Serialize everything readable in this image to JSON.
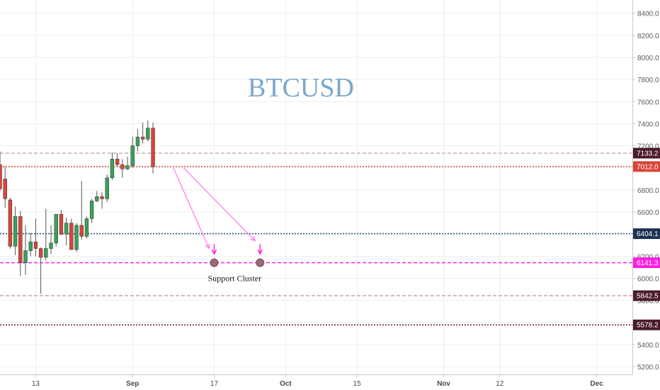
{
  "chart_data": {
    "type": "candlestick",
    "title": "BTCUSD",
    "y_axis": {
      "range": [
        5130,
        8520
      ],
      "ticks": [
        5200,
        5400,
        5600,
        5800,
        6000,
        6200,
        6400,
        6600,
        6800,
        7000,
        7200,
        7400,
        7600,
        7800,
        8000,
        8200,
        8400
      ],
      "tick_labels": [
        "5200.0",
        "5400.0",
        "5600.0",
        "5800.0",
        "6000.0",
        "6200.0",
        "6400.0",
        "6600.0",
        "6800.0",
        "7000.0",
        "7200.0",
        "7400.0",
        "7600.0",
        "7800.0",
        "8000.0",
        "8200.0",
        "8400.0"
      ],
      "position": "right"
    },
    "x_axis": {
      "range": [
        "2018-08-06",
        "2018-12-08"
      ],
      "ticks": [
        {
          "date": "2018-08-13",
          "label": "13",
          "bold": false
        },
        {
          "date": "2018-09-01",
          "label": "Sep",
          "bold": true
        },
        {
          "date": "2018-09-17",
          "label": "17",
          "bold": false
        },
        {
          "date": "2018-10-01",
          "label": "Oct",
          "bold": true
        },
        {
          "date": "2018-10-15",
          "label": "15",
          "bold": false
        },
        {
          "date": "2018-11-01",
          "label": "Nov",
          "bold": true
        },
        {
          "date": "2018-11-12",
          "label": "12",
          "bold": false
        },
        {
          "date": "2018-12-01",
          "label": "Dec",
          "bold": true
        }
      ]
    },
    "grid": true,
    "candle_colors": {
      "up": "#3aa05a",
      "down": "#d9443a",
      "wick": "#555555"
    },
    "candles": [
      {
        "date": "2018-08-06",
        "open": 7030,
        "high": 7150,
        "low": 6790,
        "close": 6810
      },
      {
        "date": "2018-08-07",
        "open": 6900,
        "high": 7010,
        "low": 6640,
        "close": 6720
      },
      {
        "date": "2018-08-08",
        "open": 6710,
        "high": 6730,
        "low": 6270,
        "close": 6290
      },
      {
        "date": "2018-08-09",
        "open": 6290,
        "high": 6650,
        "low": 6210,
        "close": 6560
      },
      {
        "date": "2018-08-10",
        "open": 6560,
        "high": 6610,
        "low": 6020,
        "close": 6140
      },
      {
        "date": "2018-08-11",
        "open": 6140,
        "high": 6480,
        "low": 6030,
        "close": 6250
      },
      {
        "date": "2018-08-12",
        "open": 6250,
        "high": 6410,
        "low": 6200,
        "close": 6330
      },
      {
        "date": "2018-08-13",
        "open": 6330,
        "high": 6540,
        "low": 6200,
        "close": 6270
      },
      {
        "date": "2018-08-14",
        "open": 6270,
        "high": 6280,
        "low": 5860,
        "close": 6190
      },
      {
        "date": "2018-08-15",
        "open": 6190,
        "high": 6630,
        "low": 6160,
        "close": 6270
      },
      {
        "date": "2018-08-16",
        "open": 6270,
        "high": 6480,
        "low": 6220,
        "close": 6320
      },
      {
        "date": "2018-08-17",
        "open": 6320,
        "high": 6560,
        "low": 6290,
        "close": 6580
      },
      {
        "date": "2018-08-18",
        "open": 6580,
        "high": 6620,
        "low": 6390,
        "close": 6400
      },
      {
        "date": "2018-08-19",
        "open": 6400,
        "high": 6550,
        "low": 6300,
        "close": 6500
      },
      {
        "date": "2018-08-20",
        "open": 6500,
        "high": 6540,
        "low": 6280,
        "close": 6260
      },
      {
        "date": "2018-08-21",
        "open": 6260,
        "high": 6500,
        "low": 6240,
        "close": 6480
      },
      {
        "date": "2018-08-22",
        "open": 6480,
        "high": 6880,
        "low": 6350,
        "close": 6380
      },
      {
        "date": "2018-08-23",
        "open": 6380,
        "high": 6560,
        "low": 6360,
        "close": 6540
      },
      {
        "date": "2018-08-24",
        "open": 6540,
        "high": 6720,
        "low": 6500,
        "close": 6700
      },
      {
        "date": "2018-08-25",
        "open": 6700,
        "high": 6790,
        "low": 6690,
        "close": 6740
      },
      {
        "date": "2018-08-26",
        "open": 6740,
        "high": 6780,
        "low": 6630,
        "close": 6720
      },
      {
        "date": "2018-08-27",
        "open": 6720,
        "high": 6940,
        "low": 6690,
        "close": 6910
      },
      {
        "date": "2018-08-28",
        "open": 6910,
        "high": 7140,
        "low": 6890,
        "close": 7080
      },
      {
        "date": "2018-08-29",
        "open": 7080,
        "high": 7130,
        "low": 7010,
        "close": 7030
      },
      {
        "date": "2018-08-30",
        "open": 7030,
        "high": 7080,
        "low": 6910,
        "close": 6990
      },
      {
        "date": "2018-08-31",
        "open": 6990,
        "high": 7100,
        "low": 6980,
        "close": 7020
      },
      {
        "date": "2018-09-01",
        "open": 7020,
        "high": 7280,
        "low": 7000,
        "close": 7200
      },
      {
        "date": "2018-09-02",
        "open": 7200,
        "high": 7350,
        "low": 7150,
        "close": 7280
      },
      {
        "date": "2018-09-03",
        "open": 7280,
        "high": 7410,
        "low": 7220,
        "close": 7260
      },
      {
        "date": "2018-09-04",
        "open": 7260,
        "high": 7430,
        "low": 7240,
        "close": 7360
      },
      {
        "date": "2018-09-05",
        "open": 7360,
        "high": 7410,
        "low": 6950,
        "close": 7010
      }
    ],
    "horizontal_levels": [
      {
        "value": 7133.2,
        "label": "7133.2",
        "line_color": "#c9b0b6",
        "badge_color": "#4a1c2a",
        "style": "dashed"
      },
      {
        "value": 7012.0,
        "label": "7012.0",
        "line_color": "#d9443a",
        "badge_color": "#d9443a",
        "style": "dotted"
      },
      {
        "value": 6404.1,
        "label": "6404.1",
        "line_color": "#1e4d7a",
        "badge_color": "#1e3250",
        "style": "dotted"
      },
      {
        "value": 6141.3,
        "label": "6141.3",
        "line_color": "#ff1ee0",
        "badge_color": "#ff1ee0",
        "style": "dashed"
      },
      {
        "value": 5842.5,
        "label": "5842.5",
        "line_color": "#c9a0a8",
        "badge_color": "#4a1c2a",
        "style": "dashed"
      },
      {
        "value": 5578.2,
        "label": "5578.2",
        "line_color": "#6a1a2c",
        "badge_color": "#4a1c2a",
        "style": "dotted"
      }
    ],
    "arrows": [
      {
        "from": {
          "date": "2018-09-09",
          "value": 7000
        },
        "to": {
          "date": "2018-09-16",
          "value": 6270
        },
        "color": "#ff88ee"
      },
      {
        "from": {
          "date": "2018-09-11",
          "value": 7000
        },
        "to": {
          "date": "2018-09-25",
          "value": 6340
        },
        "color": "#ff88ee"
      },
      {
        "from": {
          "date": "2018-09-17",
          "value": 6310
        },
        "to": {
          "date": "2018-09-17",
          "value": 6220
        },
        "color": "#ff1ee0"
      },
      {
        "from": {
          "date": "2018-09-26",
          "value": 6310
        },
        "to": {
          "date": "2018-09-26",
          "value": 6220
        },
        "color": "#ff1ee0"
      }
    ],
    "markers": [
      {
        "date": "2018-09-17",
        "value": 6141.3,
        "color": "#9a6a7a"
      },
      {
        "date": "2018-09-26",
        "value": 6141.3,
        "color": "#9a6a7a"
      }
    ],
    "annotations": [
      {
        "text": "Support Cluster",
        "date": "2018-09-21",
        "value": 6000
      }
    ],
    "colors": {
      "grid": "#eeeeee",
      "axis_text": "#5a5a5a",
      "axis_line": "#c8c8c8",
      "title": "#7aa7cc"
    }
  }
}
